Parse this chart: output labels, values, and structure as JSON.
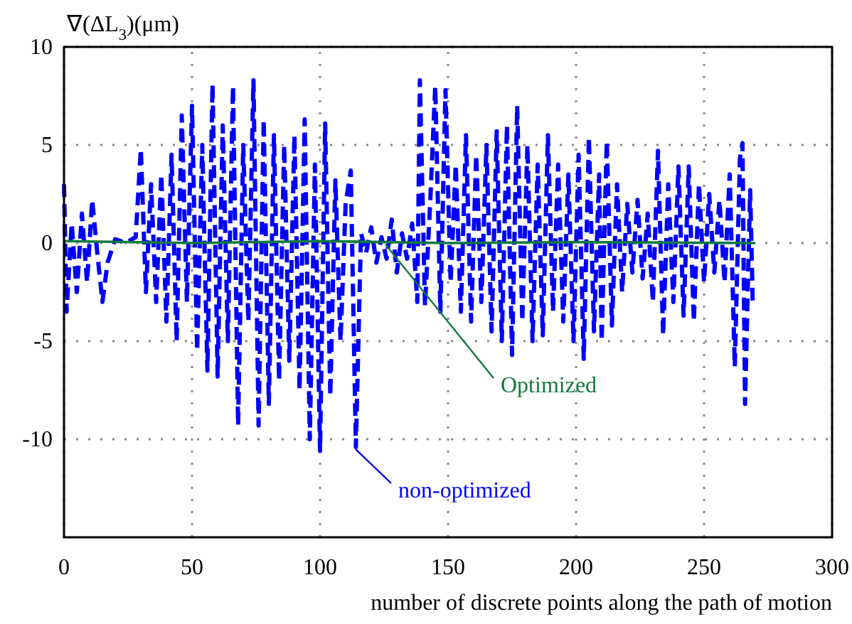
{
  "chart_data": {
    "type": "line",
    "xlabel": "number of discrete points along the path of motion",
    "ylabel": "∇(ΔL$_{3}$)(μm)",
    "xlim": [
      0,
      300
    ],
    "xticks": [
      0,
      50,
      100,
      150,
      200,
      250,
      300
    ],
    "ylim": [
      -15,
      10
    ],
    "yticks": [
      -10,
      -5,
      0,
      5,
      10
    ],
    "grid": true,
    "series": [
      {
        "name": "non-optimized",
        "color": "#0000ff",
        "line_style": "dashed",
        "x": [
          0,
          1,
          3,
          5,
          7,
          9,
          11,
          13,
          15,
          17,
          20,
          24,
          28,
          30,
          32,
          34,
          36,
          38,
          40,
          42,
          44,
          46,
          48,
          50,
          52,
          54,
          56,
          58,
          60,
          62,
          64,
          66,
          68,
          70,
          72,
          74,
          76,
          78,
          80,
          82,
          84,
          86,
          88,
          90,
          92,
          94,
          96,
          98,
          100,
          102,
          104,
          106,
          108,
          110,
          112,
          114,
          116,
          118,
          120,
          122,
          124,
          126,
          128,
          130,
          132,
          134,
          136,
          138,
          139,
          141,
          143,
          145,
          147,
          149,
          151,
          153,
          155,
          157,
          159,
          161,
          163,
          165,
          167,
          169,
          171,
          173,
          175,
          177,
          179,
          181,
          183,
          185,
          187,
          189,
          191,
          193,
          195,
          197,
          199,
          201,
          203,
          205,
          207,
          209,
          210,
          212,
          214,
          216,
          218,
          220,
          222,
          224,
          226,
          228,
          230,
          232,
          234,
          236,
          238,
          240,
          242,
          244,
          246,
          248,
          250,
          252,
          254,
          256,
          258,
          260,
          262,
          264,
          265,
          266,
          268,
          269
        ],
        "values": [
          3,
          -3.5,
          1,
          -2.5,
          1.5,
          -2,
          2.2,
          -0.5,
          -3,
          -1,
          0.2,
          0,
          0.3,
          4.8,
          -2.5,
          3,
          -3,
          3.5,
          -4,
          4.5,
          -5,
          6.5,
          -3,
          7,
          -5.5,
          5,
          -6.5,
          8.1,
          -6.8,
          6,
          -5,
          8,
          -9.3,
          5,
          -4,
          8.3,
          -9.3,
          6.3,
          -8.2,
          5.5,
          -7,
          5,
          -6,
          5.5,
          -7.5,
          6.3,
          -10,
          4,
          -10.6,
          6.1,
          -7.8,
          3.2,
          -5,
          2,
          3.7,
          -10.4,
          0.5,
          -0.5,
          0.8,
          -1,
          0.3,
          -0.8,
          1.2,
          -1.5,
          0.5,
          -0.8,
          1,
          -3,
          8.3,
          -3.2,
          2,
          8,
          -3.5,
          7.8,
          -2,
          4,
          -3.5,
          5.5,
          -4,
          4.5,
          -3,
          5,
          -4.5,
          5.7,
          -5,
          6,
          -5.7,
          7,
          -4,
          5,
          -5,
          4,
          -4.7,
          5.5,
          -3.5,
          4,
          -4,
          3.5,
          -5,
          4.5,
          -5.9,
          5.4,
          -4.5,
          3.5,
          -5,
          5.2,
          -4.2,
          3,
          -2.5,
          2,
          -1.5,
          2.2,
          -1.8,
          1.5,
          -3,
          4.7,
          -4.7,
          3,
          -3,
          3.9,
          -3.7,
          3.9,
          -4,
          3,
          -2,
          2.5,
          -1.5,
          2.2,
          -2,
          3.5,
          -6.3,
          4.3,
          5.1,
          -8.2,
          2.7,
          -3
        ]
      },
      {
        "name": "Optimized",
        "color": "#137a3c",
        "line_style": "solid",
        "x": [
          0,
          50,
          100,
          150,
          200,
          270
        ],
        "values": [
          0.1,
          0,
          0.1,
          0,
          0.05,
          0
        ]
      }
    ]
  }
}
